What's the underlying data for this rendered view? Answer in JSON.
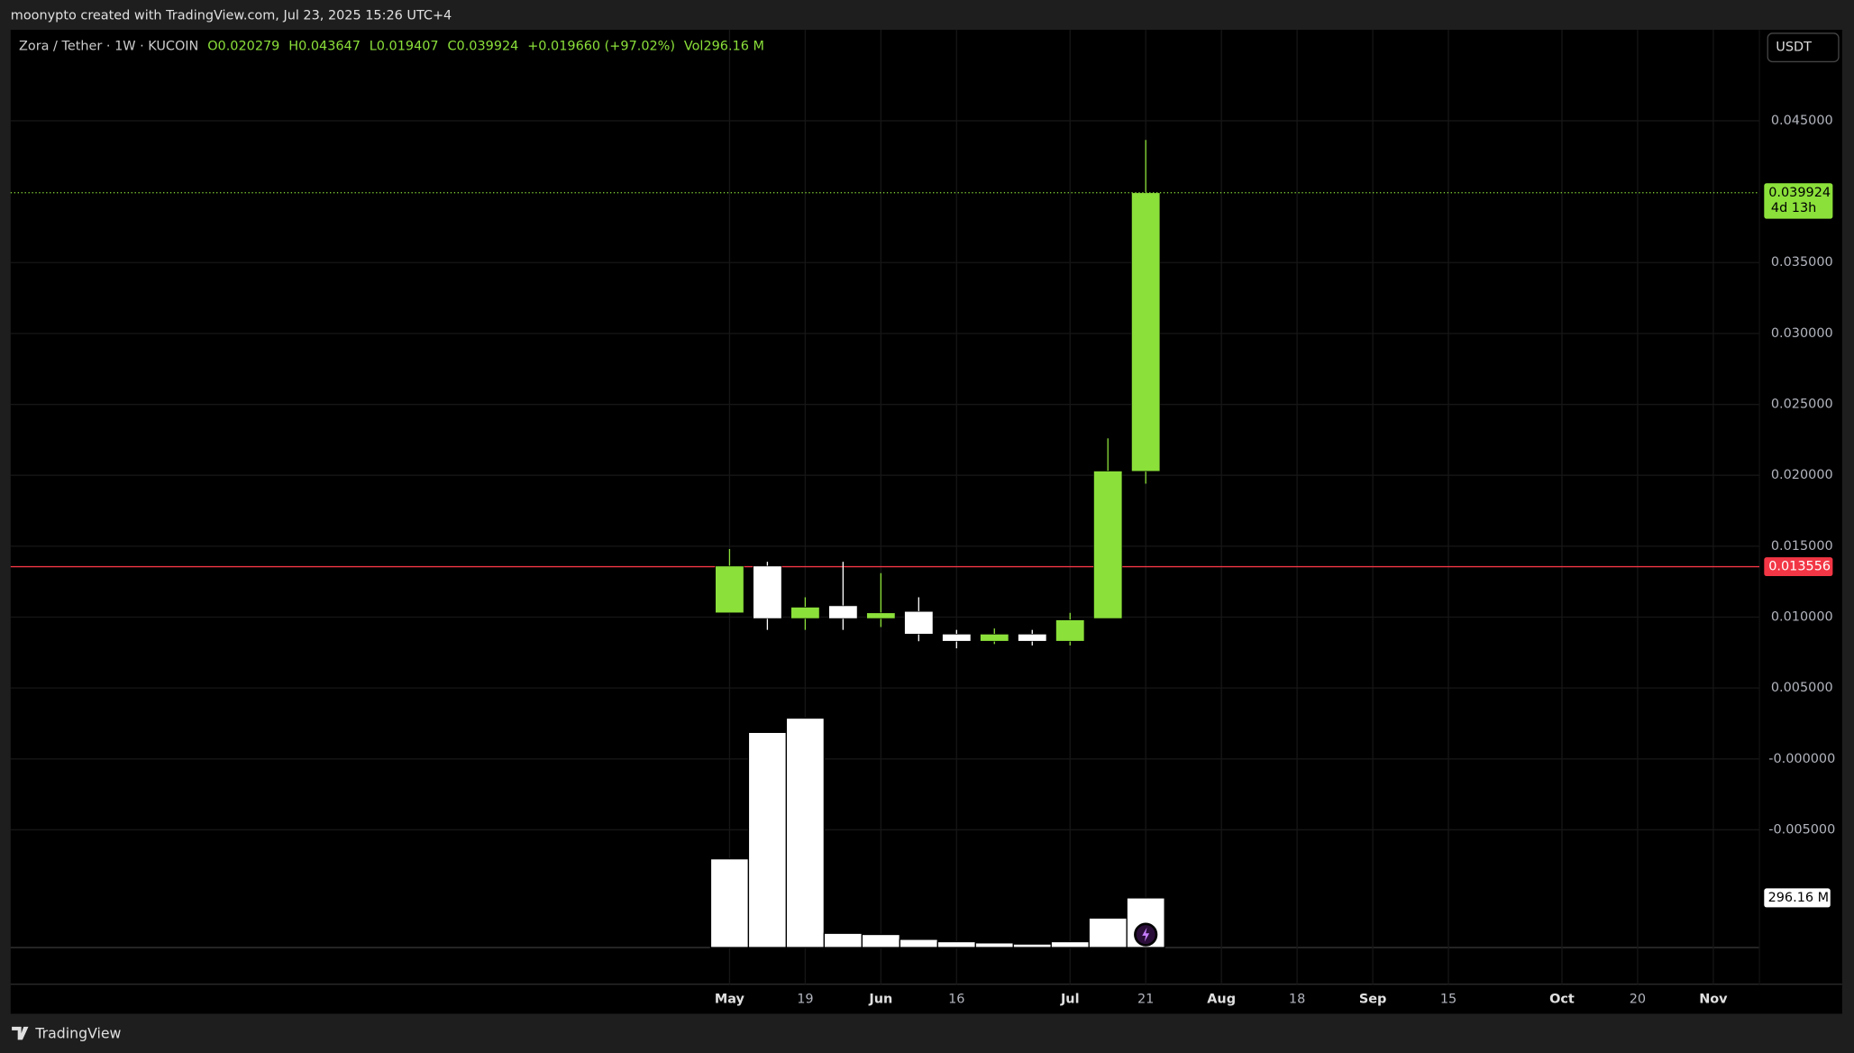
{
  "header": "moonypto created with TradingView.com, Jul 23, 2025 15:26 UTC+4",
  "footer": "TradingView",
  "currency_button": "USDT",
  "chart_data": {
    "type": "candlestick",
    "legend": {
      "symbol": "Zora / Tether · 1W · KUCOIN",
      "labels": [
        "O",
        "H",
        "L",
        "C"
      ],
      "change": "+0.019660 (+97.02%)",
      "vol_label": "Vol"
    },
    "categories": [
      "May",
      null,
      "19",
      null,
      "Jun",
      null,
      "16",
      null,
      null,
      "Jul",
      null,
      "21",
      null,
      "Aug",
      null,
      "18",
      null,
      "Sep",
      null,
      "15",
      null,
      null,
      "Oct",
      null,
      "20",
      null,
      "Nov"
    ],
    "open": [
      0.0103,
      0.0136,
      0.0099,
      0.0108,
      0.0099,
      0.0104,
      0.0088,
      0.0083,
      0.0088,
      0.0083,
      0.0099,
      0.020279,
      null,
      null,
      null,
      null,
      null,
      null,
      null,
      null,
      null,
      null,
      null,
      null,
      null,
      null,
      null
    ],
    "high": [
      0.0148,
      0.0139,
      0.0114,
      0.0139,
      0.0131,
      0.0114,
      0.0091,
      0.0092,
      0.0091,
      0.0103,
      0.0226,
      0.043647,
      null,
      null,
      null,
      null,
      null,
      null,
      null,
      null,
      null,
      null,
      null,
      null,
      null,
      null,
      null
    ],
    "low": [
      0.0103,
      0.0091,
      0.0091,
      0.0091,
      0.0093,
      0.0083,
      0.0078,
      0.0081,
      0.008,
      0.008,
      0.0099,
      0.019407,
      null,
      null,
      null,
      null,
      null,
      null,
      null,
      null,
      null,
      null,
      null,
      null,
      null,
      null,
      null
    ],
    "close": [
      0.0136,
      0.0099,
      0.0107,
      0.0099,
      0.0103,
      0.0088,
      0.0083,
      0.0088,
      0.0083,
      0.0098,
      0.0203,
      0.039924,
      null,
      null,
      null,
      null,
      null,
      null,
      null,
      null,
      null,
      null,
      null,
      null,
      null,
      null,
      null
    ],
    "volume": {
      "name": "Vol",
      "color": "#ffffff",
      "unit": "M",
      "values": [
        529,
        1283,
        1368,
        85,
        78,
        49,
        35,
        28,
        21,
        35,
        176,
        296.16,
        null,
        null,
        null,
        null,
        null,
        null,
        null,
        null,
        null,
        null,
        null,
        null,
        null,
        null,
        null
      ],
      "value_labels": [
        null,
        null,
        null,
        null,
        null,
        null,
        null,
        null,
        null,
        null,
        null,
        "296.16 M",
        null,
        null,
        null,
        null,
        null,
        null,
        null,
        null,
        null,
        null,
        null,
        null,
        null,
        null,
        null
      ]
    },
    "up_color": "#8be03a",
    "down_color": "#ffffff",
    "ylim": [
      -0.0133,
      0.0535
    ],
    "yticks": [
      {
        "value": 0.045,
        "label": "0.045000"
      },
      {
        "value": 0.035,
        "label": "0.035000"
      },
      {
        "value": 0.03,
        "label": "0.030000"
      },
      {
        "value": 0.025,
        "label": "0.025000"
      },
      {
        "value": 0.02,
        "label": "0.020000"
      },
      {
        "value": 0.015,
        "label": "0.015000"
      },
      {
        "value": 0.01,
        "label": "0.010000"
      },
      {
        "value": 0.005,
        "label": "0.005000"
      },
      {
        "value": 0,
        "label": "-0.000000"
      },
      {
        "value": -0.005,
        "label": "-0.005000"
      }
    ],
    "grid": true,
    "countdown": "4d 13h",
    "hline": {
      "value": 0.013556,
      "color": "#f23645"
    }
  }
}
